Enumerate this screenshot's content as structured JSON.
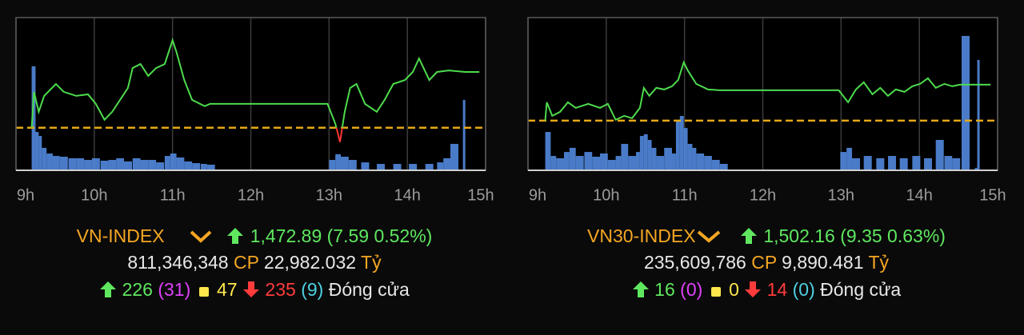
{
  "chart_data": [
    {
      "type": "line",
      "title": "VN-INDEX",
      "price": "1,472.89",
      "change": "(7.59 0.52%)",
      "volume": "811,346,348",
      "volume_unit": "CP",
      "turnover": "22,982.032",
      "turnover_unit": "Tỷ",
      "advances": "226",
      "ceiling": "(31)",
      "unchanged": "47",
      "declines": "235",
      "floor": "(9)",
      "status": "Đóng cửa",
      "xlim": [
        9,
        15
      ],
      "xticks": [
        {
          "value": 9,
          "label": "9h"
        },
        {
          "value": 10,
          "label": "10h"
        },
        {
          "value": 11,
          "label": "11h"
        },
        {
          "value": 12,
          "label": "12h"
        },
        {
          "value": 13,
          "label": "13h"
        },
        {
          "value": 14,
          "label": "14h"
        },
        {
          "value": 15,
          "label": "15h"
        }
      ],
      "grid": true,
      "ylim": [
        1459.5,
        1480.3
      ],
      "y2lim": [
        0,
        100
      ],
      "reference": {
        "value": 1465.3,
        "color": "#e6a817"
      },
      "x": [
        9.2,
        9.23,
        9.29,
        9.36,
        9.51,
        9.61,
        9.77,
        9.92,
        10.02,
        10.13,
        10.23,
        10.33,
        10.43,
        10.49,
        10.59,
        10.69,
        10.79,
        10.9,
        11.0,
        11.05,
        11.15,
        11.25,
        11.41,
        11.48,
        12.98,
        13.08,
        13.14,
        13.2,
        13.27,
        13.35,
        13.46,
        13.61,
        13.71,
        13.82,
        13.97,
        14.07,
        14.15,
        14.28,
        14.38,
        14.53,
        14.74,
        14.92
      ],
      "series": [
        {
          "color": "#4ddb4d",
          "down_color": "#ff3333",
          "values": [
            1465.3,
            1470.18,
            1467.47,
            1469.64,
            1471.26,
            1470.18,
            1469.64,
            1469.85,
            1468.55,
            1466.38,
            1467.47,
            1469.09,
            1470.72,
            1473.43,
            1473.97,
            1472.35,
            1473.43,
            1473.97,
            1477.22,
            1475.6,
            1471.8,
            1469.09,
            1468.23,
            1468.55,
            1468.55,
            1465.84,
            1463.35,
            1467.47,
            1470.72,
            1471.26,
            1468.55,
            1467.47,
            1469.09,
            1471.26,
            1471.8,
            1472.89,
            1474.73,
            1471.8,
            1472.89,
            1473.1,
            1472.89,
            1472.89
          ]
        },
        {
          "type": "bar",
          "axis": "y2",
          "color": "#4f86d9",
          "x": [
            9.2,
            9.25,
            9.29,
            9.33,
            9.39,
            9.47,
            9.56,
            9.67,
            9.77,
            9.87,
            9.97,
            10.08,
            10.18,
            10.28,
            10.38,
            10.49,
            10.59,
            10.69,
            10.79,
            10.9,
            10.97,
            11.05,
            11.15,
            11.25,
            11.36,
            11.44,
            13.0,
            13.08,
            13.15,
            13.25,
            13.41,
            13.61,
            13.82,
            14.02,
            14.23,
            14.38,
            14.46,
            14.55,
            14.71
          ],
          "values": [
            68.1,
            25.1,
            22.5,
            14.7,
            11.0,
            9.4,
            8.9,
            7.9,
            7.9,
            6.8,
            7.9,
            6.3,
            6.8,
            7.9,
            5.8,
            7.9,
            6.8,
            6.8,
            5.2,
            9.4,
            11.0,
            8.4,
            5.8,
            4.7,
            4.2,
            3.7,
            6.8,
            10.5,
            8.9,
            6.8,
            5.2,
            4.2,
            4.2,
            4.2,
            4.2,
            5.2,
            7.9,
            17.3,
            46.1
          ]
        }
      ]
    },
    {
      "type": "line",
      "title": "VN30-INDEX",
      "price": "1,502.16",
      "change": "(9.35 0.63%)",
      "volume": "235,609,786",
      "volume_unit": "CP",
      "turnover": "9,890.481",
      "turnover_unit": "Tỷ",
      "advances": "16",
      "ceiling": "(0)",
      "unchanged": "0",
      "declines": "14",
      "floor": "(0)",
      "status": "Đóng cửa",
      "xlim": [
        9,
        15
      ],
      "xticks": [
        {
          "value": 9,
          "label": "9h"
        },
        {
          "value": 10,
          "label": "10h"
        },
        {
          "value": 11,
          "label": "11h"
        },
        {
          "value": 12,
          "label": "12h"
        },
        {
          "value": 13,
          "label": "13h"
        },
        {
          "value": 14,
          "label": "14h"
        },
        {
          "value": 15,
          "label": "15h"
        }
      ],
      "grid": true,
      "ylim": [
        1479.9,
        1519.6
      ],
      "y2lim": [
        0,
        100
      ],
      "reference": {
        "value": 1492.81,
        "color": "#e6a817"
      },
      "x": [
        9.22,
        9.24,
        9.31,
        9.41,
        9.51,
        9.61,
        9.77,
        9.92,
        10.02,
        10.12,
        10.23,
        10.33,
        10.43,
        10.48,
        10.55,
        10.64,
        10.74,
        10.84,
        10.92,
        10.99,
        11.04,
        11.15,
        11.3,
        11.45,
        12.97,
        13.09,
        13.19,
        13.29,
        13.4,
        13.5,
        13.6,
        13.7,
        13.81,
        13.91,
        14.01,
        14.11,
        14.21,
        14.32,
        14.42,
        14.52,
        14.91
      ],
      "series": [
        {
          "color": "#4ddb4d",
          "down_color": "#ff3333",
          "values": [
            1492.81,
            1497.59,
            1494.06,
            1495.1,
            1497.59,
            1496.13,
            1497.17,
            1496.13,
            1497.17,
            1493.02,
            1494.06,
            1493.43,
            1496.13,
            1501.33,
            1499.25,
            1501.33,
            1500.91,
            1501.75,
            1503.41,
            1507.98,
            1505.9,
            1502.37,
            1500.91,
            1500.71,
            1500.71,
            1497.59,
            1500.91,
            1502.78,
            1499.67,
            1501.33,
            1499.25,
            1500.91,
            1500.29,
            1501.75,
            1502.37,
            1503.82,
            1501.33,
            1502.37,
            1501.75,
            1502.16,
            1502.16
          ]
        },
        {
          "type": "bar",
          "axis": "y2",
          "color": "#4f86d9",
          "x": [
            9.22,
            9.29,
            9.36,
            9.46,
            9.53,
            9.61,
            9.72,
            9.82,
            9.92,
            10.02,
            10.12,
            10.19,
            10.28,
            10.38,
            10.43,
            10.48,
            10.53,
            10.58,
            10.64,
            10.74,
            10.84,
            10.89,
            10.94,
            10.99,
            11.04,
            11.1,
            11.15,
            11.25,
            11.35,
            11.45,
            12.99,
            13.07,
            13.14,
            13.29,
            13.45,
            13.6,
            13.75,
            13.91,
            14.06,
            14.21,
            14.32,
            14.42,
            14.54,
            14.71,
            14.74
          ],
          "values": [
            25.1,
            9.4,
            7.9,
            12.0,
            14.7,
            9.4,
            12.0,
            8.9,
            11.0,
            6.8,
            9.4,
            17.3,
            9.4,
            12.0,
            22.5,
            23.6,
            19.9,
            14.7,
            9.4,
            14.7,
            11.0,
            33.0,
            35.6,
            27.7,
            17.3,
            14.7,
            11.0,
            9.4,
            6.8,
            4.2,
            12.0,
            14.7,
            7.9,
            9.4,
            7.9,
            9.4,
            7.9,
            9.4,
            7.9,
            19.9,
            9.4,
            7.9,
            88.0,
            1.6,
            72.3
          ]
        }
      ]
    }
  ]
}
